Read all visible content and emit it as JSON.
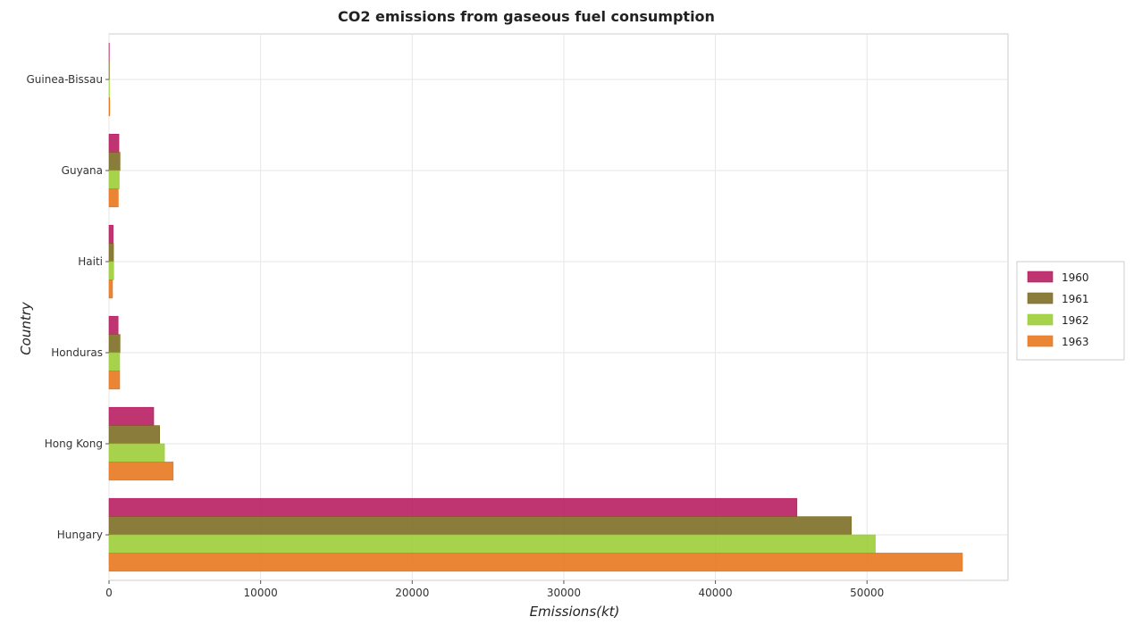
{
  "chart_data": {
    "type": "bar",
    "orientation": "horizontal",
    "title": "CO2 emissions from gaseous fuel consumption",
    "xlabel": "Emissions(kt)",
    "ylabel": "Country",
    "xlim": [
      0,
      59300
    ],
    "grid": true,
    "legend_position": "right",
    "categories": [
      "Guinea-Bissau",
      "Guyana",
      "Haiti",
      "Honduras",
      "Hong Kong",
      "Hungary"
    ],
    "x_ticks": [
      0,
      10000,
      20000,
      30000,
      40000,
      50000
    ],
    "x_tick_labels": [
      "0",
      "10000",
      "20000",
      "30000",
      "40000",
      "50000"
    ],
    "series": [
      {
        "name": "1960",
        "color": "#b5195e",
        "values": [
          18,
          652,
          271,
          601,
          2948,
          45379
        ]
      },
      {
        "name": "1961",
        "color": "#7a6a1f",
        "values": [
          22,
          726,
          297,
          726,
          3340,
          48969
        ]
      },
      {
        "name": "1962",
        "color": "#9acd32",
        "values": [
          26,
          675,
          308,
          704,
          3659,
          50549
        ]
      },
      {
        "name": "1963",
        "color": "#e8741a",
        "values": [
          48,
          612,
          231,
          704,
          4233,
          56294
        ]
      }
    ]
  }
}
